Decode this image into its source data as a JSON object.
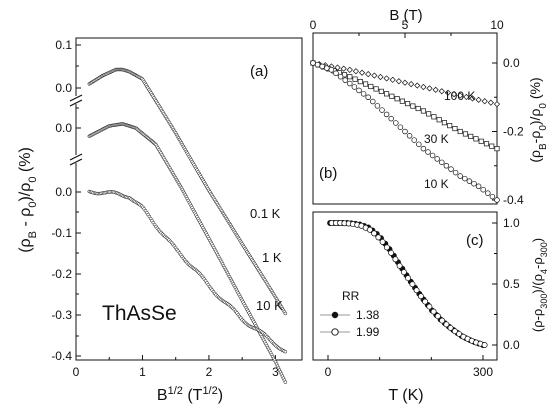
{
  "colors": {
    "ink": "#111111",
    "background": "#ffffff"
  },
  "labels": {
    "panel_a": "(a)",
    "panel_b": "(b)",
    "panel_c": "(c)",
    "sample": "ThAsSe",
    "left_ylabel": "(ρB - ρ0)/ρ0  (%)",
    "left_xlabel": "B1/2 (T1/2)",
    "b_top_xlabel": "B  (T)",
    "b_ylabel": "(ρB-ρ0)/ρ0  (%)",
    "c_ylabel": "(ρ-ρ300)/(ρ4-ρ300)",
    "c_xlabel": "T (K)",
    "legend_title": "RR",
    "legend_1": "1.38",
    "legend_2": "1.99"
  },
  "chart_data": [
    {
      "panel": "a",
      "type": "scatter",
      "xlabel": "B^{1/2} (T^{1/2})",
      "ylabel": "(ρB - ρ0)/ρ0 (%)",
      "xlim": [
        0,
        3.4
      ],
      "x_ticks": [
        "0",
        "1",
        "2",
        "3"
      ],
      "y_ticks": [
        "0.1",
        "0.0",
        "0.0",
        "0.0",
        "-0.1",
        "-0.2",
        "-0.3",
        "-0.4"
      ],
      "broken_y_axis": true,
      "annotations": [
        "ThAsSe",
        "(a)"
      ],
      "series": [
        {
          "name": "0.1 K",
          "x": [
            0.2,
            0.4,
            0.6,
            0.7,
            0.8,
            1.0,
            1.5,
            2.0,
            2.5,
            3.0,
            3.15
          ],
          "y": [
            0.01,
            0.03,
            0.045,
            0.045,
            0.04,
            0.022,
            -0.11,
            -0.25,
            -0.38,
            -0.51,
            -0.55
          ]
        },
        {
          "name": "1 K",
          "x": [
            0.2,
            0.5,
            0.7,
            0.9,
            1.2,
            1.6,
            2.0,
            2.5,
            3.0,
            3.15
          ],
          "y": [
            -0.02,
            0.005,
            0.01,
            0.0,
            -0.04,
            -0.15,
            -0.27,
            -0.42,
            -0.57,
            -0.62
          ]
        },
        {
          "name": "10 K",
          "x": [
            0.2,
            0.4,
            0.6,
            0.8,
            1.0,
            1.2,
            1.5,
            1.8,
            2.0,
            2.5,
            3.0,
            3.15
          ],
          "y": [
            0.0,
            0.0,
            -0.005,
            -0.01,
            -0.04,
            -0.08,
            -0.14,
            -0.19,
            -0.23,
            -0.31,
            -0.37,
            -0.39
          ]
        }
      ]
    },
    {
      "panel": "b",
      "type": "scatter",
      "xlabel": "B (T)",
      "ylabel": "(ρB-ρ0)/ρ0 (%)",
      "xlim": [
        0,
        10
      ],
      "ylim": [
        -0.4,
        0.05
      ],
      "x_ticks": [
        "0",
        "5",
        "10"
      ],
      "y_ticks": [
        "0.0",
        "-0.2",
        "-0.4"
      ],
      "annotations": [
        "(b)"
      ],
      "series": [
        {
          "name": "100 K",
          "x": [
            0,
            2,
            4,
            6,
            8,
            10
          ],
          "y": [
            0,
            -0.02,
            -0.045,
            -0.07,
            -0.095,
            -0.12
          ]
        },
        {
          "name": "30 K",
          "x": [
            0,
            2,
            4,
            6,
            8,
            10
          ],
          "y": [
            0,
            -0.04,
            -0.09,
            -0.14,
            -0.2,
            -0.25
          ]
        },
        {
          "name": "10 K",
          "x": [
            0,
            1,
            2,
            3,
            4,
            5,
            6,
            7,
            8,
            9,
            10
          ],
          "y": [
            0,
            -0.02,
            -0.06,
            -0.1,
            -0.15,
            -0.2,
            -0.25,
            -0.29,
            -0.33,
            -0.36,
            -0.4
          ]
        }
      ]
    },
    {
      "panel": "c",
      "type": "scatter",
      "xlabel": "T (K)",
      "ylabel": "(ρ-ρ300)/(ρ4-ρ300)",
      "xlim": [
        -20,
        330
      ],
      "ylim": [
        -0.1,
        1.1
      ],
      "x_ticks": [
        "0",
        "300"
      ],
      "y_ticks": [
        "0.0",
        "0.5",
        "1.0"
      ],
      "annotations": [
        "(c)"
      ],
      "legend_title": "RR",
      "series": [
        {
          "name": "1.38",
          "marker": "filled",
          "x": [
            4,
            20,
            40,
            60,
            80,
            100,
            120,
            140,
            160,
            180,
            200,
            220,
            240,
            260,
            280,
            300
          ],
          "y": [
            1.0,
            1.0,
            1.0,
            0.99,
            0.96,
            0.89,
            0.78,
            0.65,
            0.52,
            0.4,
            0.29,
            0.2,
            0.13,
            0.07,
            0.03,
            0.0
          ]
        },
        {
          "name": "1.99",
          "marker": "open",
          "x": [
            4,
            20,
            40,
            60,
            80,
            100,
            120,
            140,
            160,
            180,
            200,
            220,
            240,
            260,
            280,
            300
          ],
          "y": [
            1.0,
            1.0,
            0.995,
            0.98,
            0.94,
            0.86,
            0.75,
            0.62,
            0.5,
            0.38,
            0.28,
            0.19,
            0.12,
            0.065,
            0.025,
            0.0
          ]
        }
      ]
    }
  ]
}
